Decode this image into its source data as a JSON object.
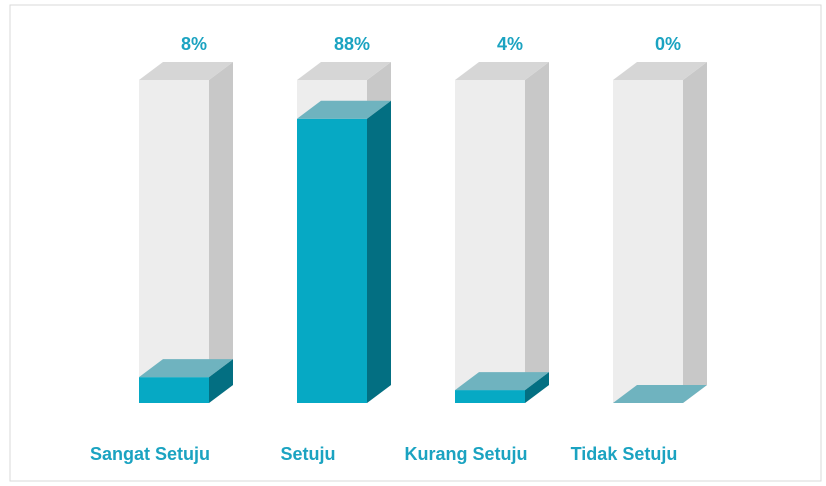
{
  "chart_data": {
    "type": "bar3d",
    "categories": [
      "Sangat Setuju",
      "Setuju",
      "Kurang Setuju",
      "Tidak Setuju"
    ],
    "values": [
      8,
      88,
      4,
      0
    ],
    "value_labels": [
      "8%",
      "88%",
      "4%",
      "0%"
    ],
    "color": "#06a9c4",
    "ylim": [
      0,
      100
    ]
  }
}
